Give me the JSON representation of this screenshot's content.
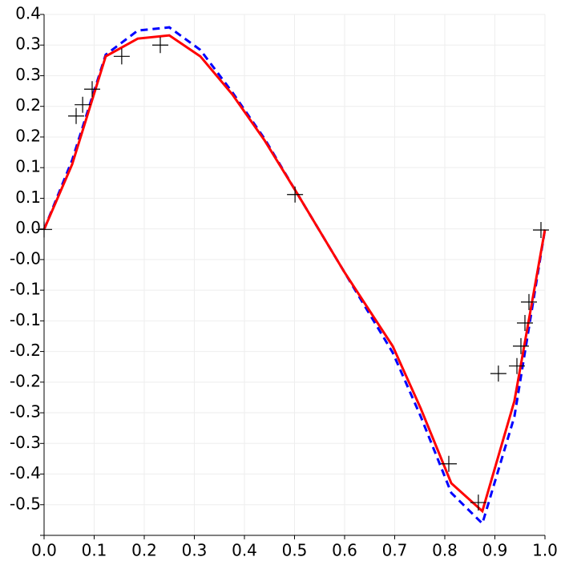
{
  "chart_data": {
    "type": "line",
    "grid": true,
    "xlim": [
      0,
      1
    ],
    "ylim": [
      -0.569,
      0.4
    ],
    "xticks": [
      {
        "value": 0,
        "label": "0.0"
      },
      0.1,
      0.2,
      0.3,
      0.4,
      0.5,
      0.6,
      0.7,
      0.8,
      0.9,
      {
        "value": 1,
        "label": "1.0"
      }
    ],
    "yticks": [
      {
        "value": 0.4,
        "label": "0.4"
      },
      {
        "value": 0.343,
        "label": "0.3"
      },
      {
        "value": 0.286,
        "label": "0.3"
      },
      {
        "value": 0.229,
        "label": "0.2"
      },
      {
        "value": 0.172,
        "label": "0.2"
      },
      {
        "value": 0.115,
        "label": "0.1"
      },
      {
        "value": 0.058,
        "label": "0.1"
      },
      {
        "value": 0.001,
        "label": "0.0"
      },
      {
        "value": -0.056,
        "label": "-0.0"
      },
      {
        "value": -0.113,
        "label": "-0.1"
      },
      {
        "value": -0.17,
        "label": "-0.1"
      },
      {
        "value": -0.227,
        "label": "-0.2"
      },
      {
        "value": -0.284,
        "label": "-0.2"
      },
      {
        "value": -0.341,
        "label": "-0.3"
      },
      {
        "value": -0.398,
        "label": "-0.3"
      },
      {
        "value": -0.455,
        "label": "-0.4"
      },
      {
        "value": -0.512,
        "label": "-0.5"
      },
      {
        "value": -0.569,
        "label": ""
      }
    ],
    "series": [
      {
        "color": "#0000ff",
        "style": "dashed",
        "x": [
          0,
          0.056,
          0.123,
          0.187,
          0.25,
          0.312,
          0.376,
          0.44,
          0.504,
          0.6,
          0.696,
          0.752,
          0.813,
          0.875,
          0.939,
          1
        ],
        "values": [
          0,
          0.129,
          0.325,
          0.37,
          0.376,
          0.334,
          0.255,
          0.169,
          0.069,
          -0.08,
          -0.229,
          -0.348,
          -0.49,
          -0.547,
          -0.348,
          0
        ]
      },
      {
        "color": "#ff0000",
        "style": "solid",
        "x": [
          0,
          0.056,
          0.123,
          0.187,
          0.25,
          0.312,
          0.376,
          0.44,
          0.504,
          0.6,
          0.696,
          0.752,
          0.813,
          0.875,
          0.939,
          1
        ],
        "values": [
          0,
          0.121,
          0.322,
          0.355,
          0.361,
          0.322,
          0.251,
          0.166,
          0.069,
          -0.08,
          -0.217,
          -0.333,
          -0.472,
          -0.524,
          -0.319,
          0
        ]
      },
      {
        "color": "#000000",
        "style": "plus",
        "x": [
          0,
          0.064,
          0.077,
          0.096,
          0.155,
          0.232,
          0.501,
          0.808,
          0.867,
          0.907,
          0.944,
          0.952,
          0.96,
          0.968,
          0.992
        ],
        "values": [
          0,
          0.211,
          0.232,
          0.261,
          0.322,
          0.343,
          0.065,
          -0.436,
          -0.508,
          -0.268,
          -0.254,
          -0.217,
          -0.174,
          -0.135,
          -0.001
        ]
      }
    ]
  }
}
